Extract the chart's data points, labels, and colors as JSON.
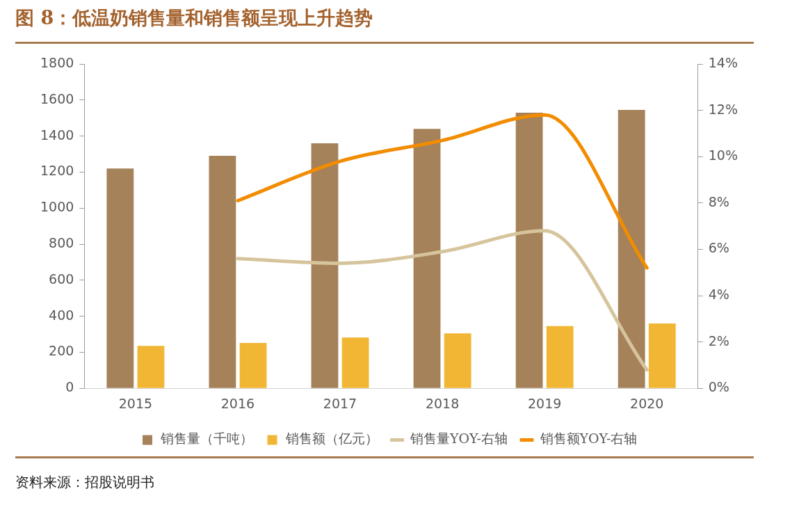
{
  "chart_data": {
    "type": "bar",
    "title": "图 8：低温奶销售量和销售额呈现上升趋势",
    "categories": [
      "2015",
      "2016",
      "2017",
      "2018",
      "2019",
      "2020"
    ],
    "series": [
      {
        "name": "销售量（千吨）",
        "color": "#a5825a",
        "values": [
          1220,
          1290,
          1360,
          1440,
          1530,
          1545
        ]
      },
      {
        "name": "销售额（亿元）",
        "color": "#f2b635",
        "values": [
          235,
          252,
          282,
          305,
          345,
          360
        ]
      },
      {
        "name": "销售量YOY-右轴",
        "type": "line",
        "axis": "y2",
        "color": "#d6c49c",
        "values": [
          null,
          5.6,
          5.4,
          5.9,
          6.8,
          0.8
        ]
      },
      {
        "name": "销售额YOY-右轴",
        "type": "line",
        "axis": "y2",
        "color": "#f28c00",
        "values": [
          null,
          8.1,
          9.8,
          10.7,
          11.8,
          5.2
        ]
      }
    ],
    "ylim": [
      0,
      1800
    ],
    "yticks": [
      0,
      200,
      400,
      600,
      800,
      1000,
      1200,
      1400,
      1600,
      1800
    ],
    "y2lim": [
      0,
      14
    ],
    "y2ticks": [
      {
        "value": 0,
        "label": "0%"
      },
      {
        "value": 2,
        "label": "2%"
      },
      {
        "value": 4,
        "label": "4%"
      },
      {
        "value": 6,
        "label": "6%"
      },
      {
        "value": 8,
        "label": "8%"
      },
      {
        "value": 10,
        "label": "10%"
      },
      {
        "value": 12,
        "label": "12%"
      },
      {
        "value": 14,
        "label": "14%"
      }
    ],
    "grid": false,
    "legend": "bottom",
    "marker": "none",
    "line_style": "solid",
    "annotations": [
      "资料来源：招股说明书"
    ]
  }
}
